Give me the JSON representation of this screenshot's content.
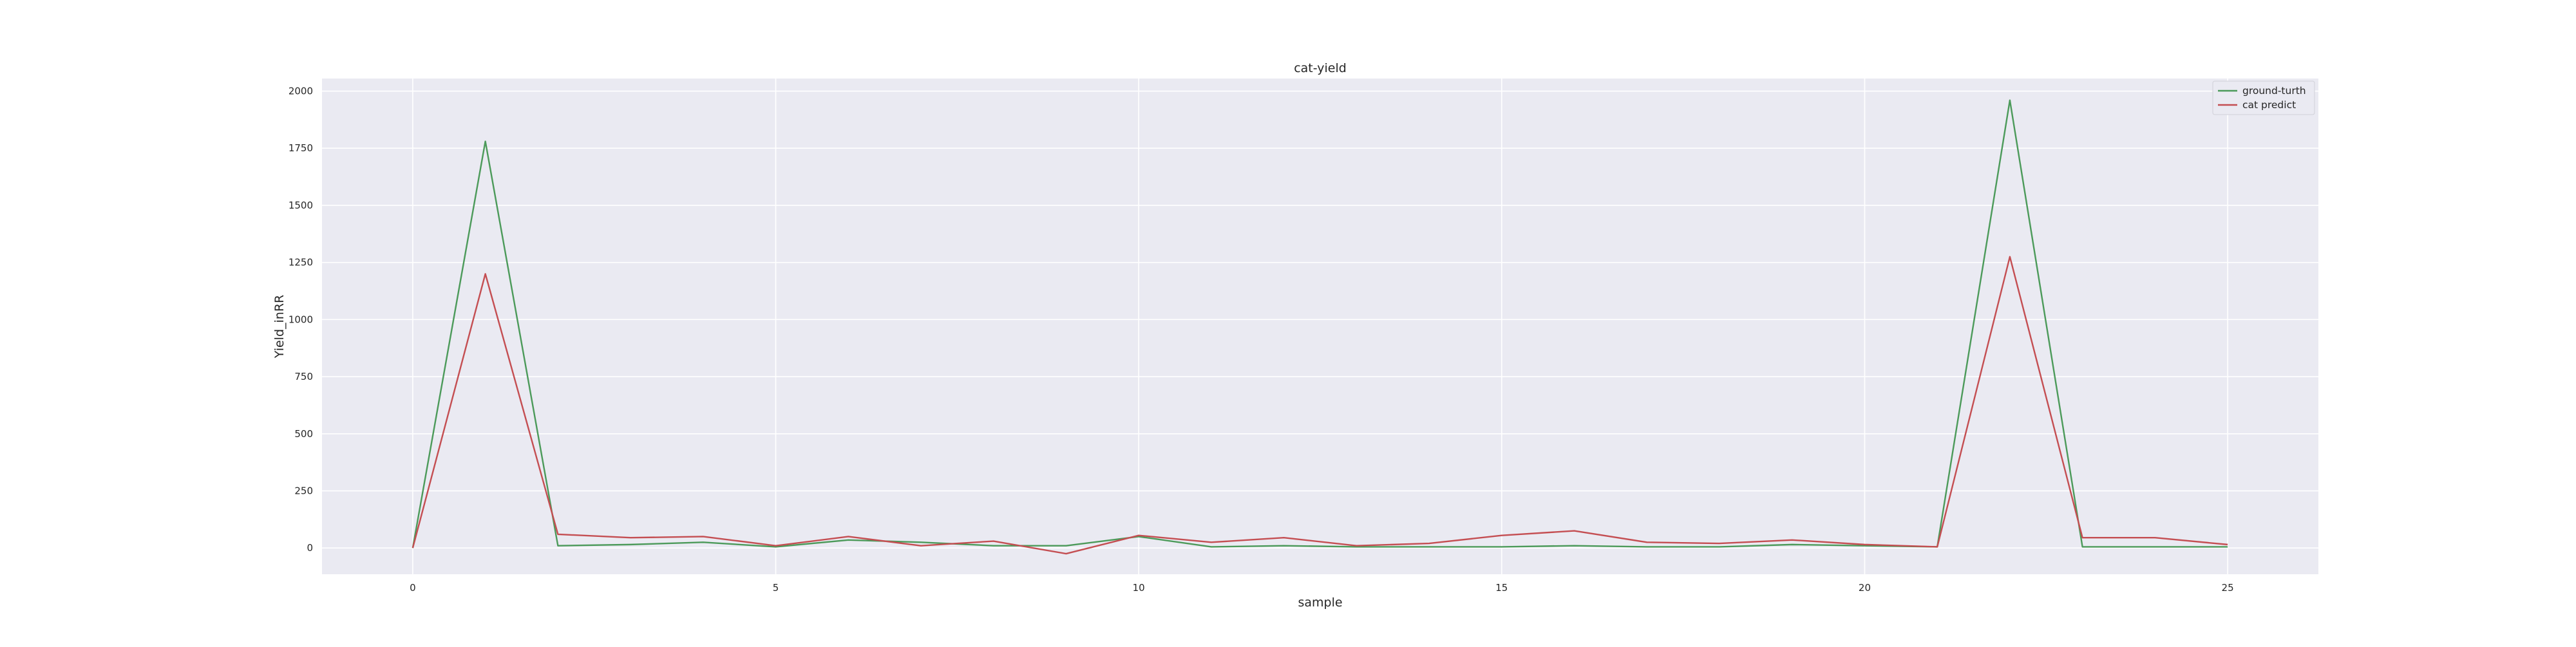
{
  "chart_data": {
    "type": "line",
    "title": "cat-yield",
    "xlabel": "sample",
    "ylabel": "Yield_inRR",
    "xlim": [
      -1.25,
      26.25
    ],
    "ylim": [
      -115,
      2055
    ],
    "xticks": [
      0,
      5,
      10,
      15,
      20,
      25
    ],
    "yticks": [
      0,
      250,
      500,
      750,
      1000,
      1250,
      1500,
      1750,
      2000
    ],
    "grid": true,
    "legend_position": "top-right",
    "x": [
      0,
      1,
      2,
      3,
      4,
      5,
      6,
      7,
      8,
      9,
      10,
      11,
      12,
      13,
      14,
      15,
      16,
      17,
      18,
      19,
      20,
      21,
      22,
      23,
      24,
      25
    ],
    "series": [
      {
        "name": "ground-turth",
        "color": "#4c9a5a",
        "values": [
          0,
          1780,
          10,
          15,
          25,
          5,
          35,
          25,
          10,
          10,
          50,
          5,
          10,
          5,
          5,
          5,
          10,
          5,
          5,
          15,
          10,
          5,
          1960,
          5,
          5,
          5
        ]
      },
      {
        "name": "cat predict",
        "color": "#c44e52",
        "values": [
          0,
          1200,
          60,
          45,
          50,
          10,
          50,
          10,
          30,
          -25,
          55,
          25,
          45,
          10,
          20,
          55,
          75,
          25,
          20,
          35,
          15,
          5,
          1275,
          45,
          45,
          15
        ]
      }
    ]
  }
}
